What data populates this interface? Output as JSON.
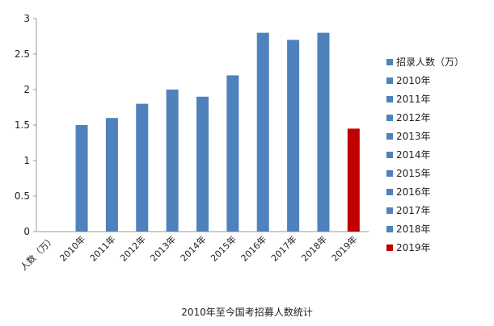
{
  "chart_data": {
    "type": "bar",
    "categories": [
      "人数（万）",
      "2010年",
      "2011年",
      "2012年",
      "2013年",
      "2014年",
      "2015年",
      "2016年",
      "2017年",
      "2018年",
      "2019年"
    ],
    "values": [
      null,
      1.5,
      1.6,
      1.8,
      2.0,
      1.9,
      2.2,
      2.8,
      2.7,
      2.8,
      1.45
    ],
    "bar_colors": [
      "#4f81bd",
      "#4f81bd",
      "#4f81bd",
      "#4f81bd",
      "#4f81bd",
      "#4f81bd",
      "#4f81bd",
      "#4f81bd",
      "#4f81bd",
      "#4f81bd",
      "#c00000"
    ],
    "yticks": [
      "0",
      "0.5",
      "1",
      "1.5",
      "2",
      "2.5",
      "3"
    ],
    "ylim": [
      0,
      3
    ],
    "grid": false,
    "legend_position": "right",
    "legend": [
      {
        "label": "招录人数（万）",
        "color": "#4f81bd"
      },
      {
        "label": "2010年",
        "color": "#4f81bd"
      },
      {
        "label": "2011年",
        "color": "#4f81bd"
      },
      {
        "label": "2012年",
        "color": "#4f81bd"
      },
      {
        "label": "2013年",
        "color": "#4f81bd"
      },
      {
        "label": "2014年",
        "color": "#4f81bd"
      },
      {
        "label": "2015年",
        "color": "#4f81bd"
      },
      {
        "label": "2016年",
        "color": "#4f81bd"
      },
      {
        "label": "2017年",
        "color": "#4f81bd"
      },
      {
        "label": "2018年",
        "color": "#4f81bd"
      },
      {
        "label": "2019年",
        "color": "#c00000"
      }
    ]
  },
  "caption": "2010年至今国考招募人数统计"
}
